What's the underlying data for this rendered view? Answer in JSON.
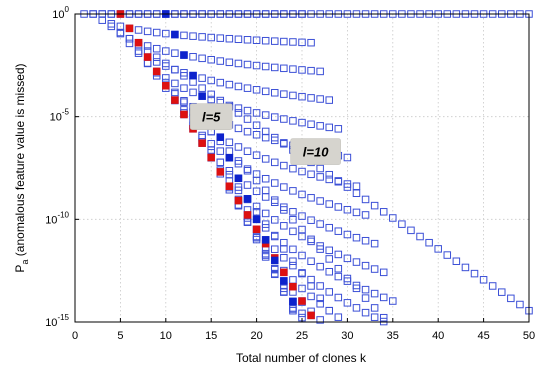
{
  "chart_data": {
    "type": "scatter",
    "xlabel": "Total number of clones k",
    "ylabel": "P_a (anomalous feature value is missed)",
    "ylabel_main": "P",
    "ylabel_sub": "a",
    "ylabel_rest": " (anomalous feature value is missed)",
    "xlim": [
      0,
      50
    ],
    "ylim_log10": [
      -15,
      0
    ],
    "y_scale": "log",
    "grid": true,
    "x_ticks": [
      "0",
      "5",
      "10",
      "15",
      "20",
      "25",
      "30",
      "35",
      "40",
      "45",
      "50"
    ],
    "y_ticks": [
      {
        "base": "10",
        "exp": "0"
      },
      {
        "base": "10",
        "exp": "-5"
      },
      {
        "base": "10",
        "exp": "-10"
      },
      {
        "base": "10",
        "exp": "-15"
      }
    ],
    "background_series": {
      "marker": "open-square",
      "color": "#3b4fd6",
      "l_values": [
        1,
        2,
        3,
        4,
        5,
        6,
        7,
        8,
        9,
        10,
        11,
        12,
        13,
        14,
        15,
        16,
        17,
        18,
        19,
        20,
        21,
        22,
        23,
        24,
        25
      ]
    },
    "highlighted_series": [
      {
        "name": "l=5",
        "l": 5,
        "color": "#dd1111",
        "marker": "filled-square"
      },
      {
        "name": "l=10",
        "l": 10,
        "color": "#0d22cc",
        "marker": "filled-square"
      }
    ],
    "annotations": [
      {
        "text": "l=5",
        "at_x": 15,
        "at_y_log10": -5
      },
      {
        "text": "l=10",
        "at_x": 26.5,
        "at_y_log10": -6.7
      }
    ]
  }
}
